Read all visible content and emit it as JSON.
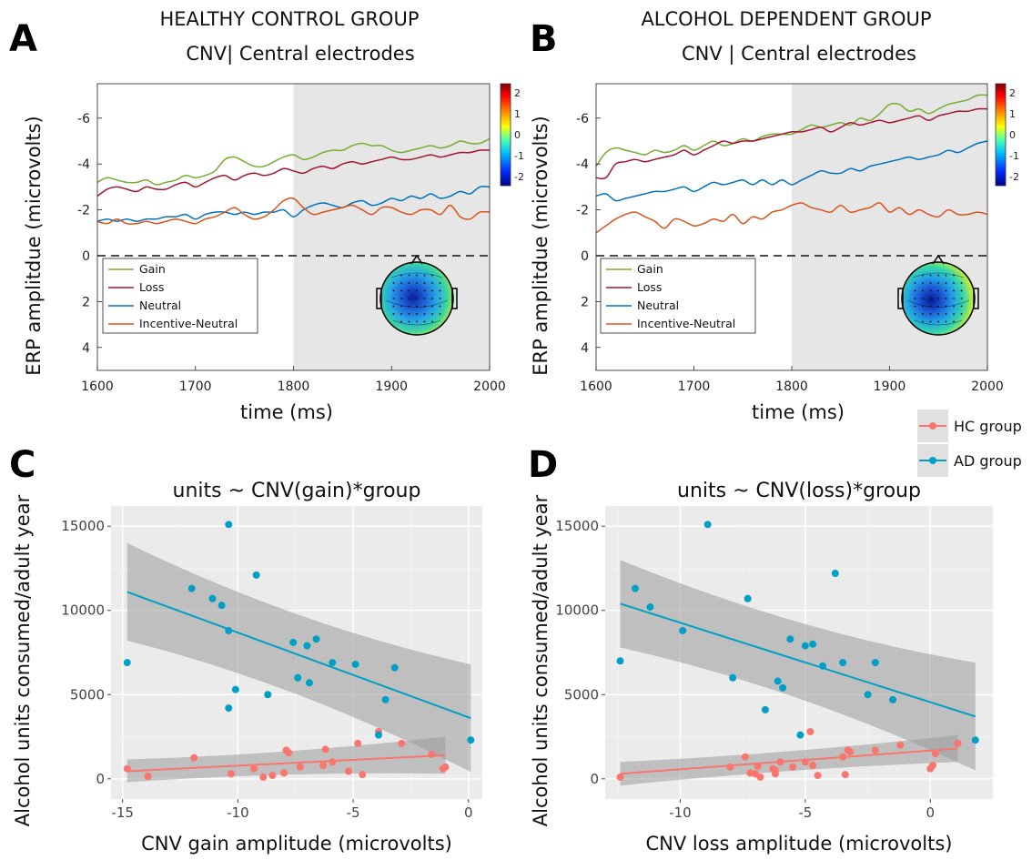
{
  "figure": {
    "panels": {
      "A": {
        "letter": "A",
        "title1": "HEALTHY CONTROL GROUP",
        "title2": "CNV| Central electrodes"
      },
      "B": {
        "letter": "B",
        "title1": "ALCOHOL DEPENDENT GROUP",
        "title2": "CNV | Central electrodes"
      },
      "C": {
        "letter": "C",
        "title": "units ~ CNV(gain)*group"
      },
      "D": {
        "letter": "D",
        "title": "units ~ CNV(loss)*group"
      }
    },
    "erp_xlabel": "time (ms)",
    "erp_ylabel": "ERP amplitdue (microvolts)",
    "scatter_ylabel": "Alcohol units consumed/adult year",
    "scatter_c_xlabel": "CNV gain amplitude (microvolts)",
    "scatter_d_xlabel": "CNV loss amplitude (microvolts)",
    "erp_legend": [
      "Gain",
      "Loss",
      "Neutral",
      "Incentive-Neutral"
    ],
    "group_legend": [
      "HC group",
      "AD group"
    ],
    "colorbar_ticks": [
      "2",
      "1",
      "0",
      "-1",
      "-2"
    ],
    "colors": {
      "gain": "#77ac30",
      "loss": "#a2142f",
      "neutral": "#0072bd",
      "incentive_neutral": "#d95319",
      "hc": "#f8766d",
      "ad": "#00a0c6",
      "panel_bg": "#ebebeb",
      "shade": "#e6e6e6"
    }
  },
  "chart_data": [
    {
      "id": "A",
      "type": "line",
      "title": "HEALTHY CONTROL GROUP CNV| Central electrodes",
      "xlabel": "time (ms)",
      "ylabel": "ERP amplitdue (microvolts)",
      "xlim": [
        1600,
        2000
      ],
      "ylim": [
        -7.5,
        5
      ],
      "y_reversed": true,
      "xticks": [
        1600,
        1700,
        1800,
        1900,
        2000
      ],
      "yticks": [
        -6,
        -4,
        -2,
        0,
        2,
        4
      ],
      "shaded_from": 1800,
      "zero_line": "dashed",
      "legend_position": "lower-left",
      "x": [
        1600,
        1610,
        1620,
        1630,
        1640,
        1650,
        1660,
        1670,
        1680,
        1690,
        1700,
        1710,
        1720,
        1730,
        1740,
        1750,
        1760,
        1770,
        1780,
        1790,
        1800,
        1810,
        1820,
        1830,
        1840,
        1850,
        1860,
        1870,
        1880,
        1890,
        1900,
        1910,
        1920,
        1930,
        1940,
        1950,
        1960,
        1970,
        1980,
        1990,
        2000
      ],
      "series": [
        {
          "name": "Gain",
          "values": [
            -3.2,
            -3.4,
            -3.3,
            -3.2,
            -3.2,
            -3.3,
            -3.1,
            -3.2,
            -3.3,
            -3.5,
            -3.4,
            -3.5,
            -3.7,
            -4.2,
            -4.3,
            -4.1,
            -3.9,
            -3.9,
            -4.1,
            -4.3,
            -4.4,
            -4.2,
            -4.3,
            -4.5,
            -4.6,
            -4.6,
            -4.8,
            -4.9,
            -4.8,
            -4.8,
            -4.6,
            -4.5,
            -4.6,
            -4.7,
            -4.8,
            -4.7,
            -4.8,
            -5.0,
            -4.9,
            -4.9,
            -5.1
          ]
        },
        {
          "name": "Loss",
          "values": [
            -2.6,
            -2.9,
            -3.0,
            -2.9,
            -2.8,
            -3.0,
            -2.9,
            -2.9,
            -3.1,
            -3.2,
            -3.0,
            -3.2,
            -3.4,
            -3.5,
            -3.3,
            -3.5,
            -3.6,
            -3.5,
            -3.6,
            -3.8,
            -3.7,
            -3.6,
            -3.8,
            -3.9,
            -3.8,
            -4.0,
            -4.1,
            -4.0,
            -4.1,
            -4.2,
            -4.3,
            -4.2,
            -4.2,
            -4.3,
            -4.4,
            -4.3,
            -4.4,
            -4.5,
            -4.5,
            -4.6,
            -4.6
          ]
        },
        {
          "name": "Neutral",
          "values": [
            -1.5,
            -1.6,
            -1.5,
            -1.6,
            -1.5,
            -1.6,
            -1.6,
            -1.7,
            -1.7,
            -1.8,
            -1.6,
            -1.8,
            -1.9,
            -1.9,
            -1.8,
            -1.9,
            -1.8,
            -1.9,
            -1.9,
            -2.0,
            -1.7,
            -2.0,
            -2.2,
            -2.3,
            -2.2,
            -2.1,
            -2.3,
            -2.4,
            -2.2,
            -2.3,
            -2.5,
            -2.4,
            -2.6,
            -2.5,
            -2.7,
            -2.5,
            -2.6,
            -2.8,
            -2.7,
            -3.0,
            -3.0
          ]
        },
        {
          "name": "Incentive-Neutral",
          "values": [
            -1.5,
            -1.4,
            -1.6,
            -1.4,
            -1.4,
            -1.5,
            -1.4,
            -1.5,
            -1.6,
            -1.5,
            -1.4,
            -1.6,
            -1.7,
            -1.9,
            -2.1,
            -1.8,
            -1.6,
            -1.7,
            -2.0,
            -2.4,
            -2.5,
            -2.1,
            -1.8,
            -1.9,
            -2.0,
            -2.1,
            -2.2,
            -2.0,
            -1.8,
            -2.1,
            -2.1,
            -1.9,
            -1.8,
            -2.0,
            -2.0,
            -1.8,
            -2.2,
            -1.7,
            -1.6,
            -1.9,
            -1.9
          ]
        }
      ]
    },
    {
      "id": "B",
      "type": "line",
      "title": "ALCOHOL DEPENDENT GROUP CNV | Central electrodes",
      "xlabel": "time (ms)",
      "ylabel": "ERP amplitdue (microvolts)",
      "xlim": [
        1600,
        2000
      ],
      "ylim": [
        -7.5,
        5
      ],
      "y_reversed": true,
      "xticks": [
        1600,
        1700,
        1800,
        1900,
        2000
      ],
      "yticks": [
        -6,
        -4,
        -2,
        0,
        2,
        4
      ],
      "shaded_from": 1800,
      "zero_line": "dashed",
      "legend_position": "lower-left",
      "x": [
        1600,
        1610,
        1620,
        1630,
        1640,
        1650,
        1660,
        1670,
        1680,
        1690,
        1700,
        1710,
        1720,
        1730,
        1740,
        1750,
        1760,
        1770,
        1780,
        1790,
        1800,
        1810,
        1820,
        1830,
        1840,
        1850,
        1860,
        1870,
        1880,
        1890,
        1900,
        1910,
        1920,
        1930,
        1940,
        1950,
        1960,
        1970,
        1980,
        1990,
        2000
      ],
      "series": [
        {
          "name": "Gain",
          "values": [
            -3.9,
            -4.5,
            -4.7,
            -4.6,
            -4.5,
            -4.4,
            -4.6,
            -4.5,
            -4.6,
            -4.8,
            -4.6,
            -4.8,
            -5.0,
            -4.8,
            -4.9,
            -5.1,
            -5.0,
            -5.2,
            -5.3,
            -5.3,
            -5.3,
            -5.5,
            -5.7,
            -5.6,
            -5.7,
            -5.8,
            -5.7,
            -6.0,
            -5.9,
            -6.2,
            -6.6,
            -6.6,
            -6.3,
            -6.4,
            -6.2,
            -6.4,
            -6.6,
            -6.7,
            -6.8,
            -7.0,
            -7.0
          ]
        },
        {
          "name": "Loss",
          "values": [
            -3.4,
            -3.4,
            -4.0,
            -4.1,
            -4.2,
            -4.1,
            -4.2,
            -4.3,
            -4.4,
            -4.6,
            -4.4,
            -4.6,
            -4.8,
            -5.0,
            -4.9,
            -5.0,
            -5.0,
            -5.1,
            -5.2,
            -5.3,
            -5.4,
            -5.4,
            -5.5,
            -5.6,
            -5.4,
            -5.6,
            -5.8,
            -5.7,
            -5.8,
            -5.9,
            -5.8,
            -5.9,
            -6.0,
            -6.1,
            -5.9,
            -6.1,
            -6.2,
            -6.3,
            -6.3,
            -6.4,
            -6.4
          ]
        },
        {
          "name": "Neutral",
          "values": [
            -2.6,
            -2.7,
            -2.4,
            -2.5,
            -2.6,
            -2.7,
            -2.8,
            -2.8,
            -2.9,
            -3.0,
            -2.8,
            -3.0,
            -3.2,
            -3.1,
            -3.2,
            -3.3,
            -3.1,
            -3.3,
            -3.1,
            -3.3,
            -3.1,
            -3.3,
            -3.5,
            -3.7,
            -3.6,
            -3.6,
            -3.8,
            -3.7,
            -3.9,
            -4.0,
            -4.1,
            -4.2,
            -4.3,
            -4.2,
            -4.3,
            -4.4,
            -4.6,
            -4.5,
            -4.7,
            -4.9,
            -5.0
          ]
        },
        {
          "name": "Incentive-Neutral",
          "values": [
            -1.0,
            -1.3,
            -1.6,
            -1.8,
            -1.9,
            -1.7,
            -1.5,
            -1.2,
            -1.6,
            -1.5,
            -1.3,
            -1.4,
            -1.6,
            -1.5,
            -1.8,
            -1.4,
            -1.7,
            -1.6,
            -1.9,
            -2.0,
            -2.2,
            -2.3,
            -2.1,
            -2.0,
            -1.9,
            -2.2,
            -1.9,
            -2.0,
            -2.1,
            -2.3,
            -1.9,
            -2.1,
            -1.8,
            -2.0,
            -1.8,
            -1.7,
            -2.0,
            -1.8,
            -1.8,
            -1.9,
            -1.8
          ]
        }
      ]
    },
    {
      "id": "C",
      "type": "scatter",
      "title": "units ~ CNV(gain)*group",
      "xlabel": "CNV gain amplitude (microvolts)",
      "ylabel": "Alcohol units consumed/adult year",
      "xlim": [
        -15.5,
        0.6
      ],
      "ylim": [
        -1200,
        16200
      ],
      "xticks": [
        -15,
        -10,
        -5,
        0
      ],
      "yticks": [
        0,
        5000,
        10000,
        15000
      ],
      "grid": true,
      "legend_position": "top-right",
      "series": [
        {
          "name": "HC group",
          "points": [
            [
              -14.8,
              600
            ],
            [
              -13.9,
              150
            ],
            [
              -11.9,
              1250
            ],
            [
              -10.3,
              300
            ],
            [
              -9.3,
              600
            ],
            [
              -8.9,
              100
            ],
            [
              -8.5,
              200
            ],
            [
              -8.0,
              350
            ],
            [
              -7.9,
              1700
            ],
            [
              -7.8,
              1550
            ],
            [
              -7.3,
              700
            ],
            [
              -6.3,
              800
            ],
            [
              -6.2,
              1750
            ],
            [
              -5.9,
              1000
            ],
            [
              -5.2,
              450
            ],
            [
              -4.8,
              2100
            ],
            [
              -4.6,
              250
            ],
            [
              -3.9,
              2800
            ],
            [
              -2.9,
              2100
            ],
            [
              -1.6,
              1450
            ],
            [
              -1.1,
              600
            ],
            [
              -1.0,
              700
            ]
          ],
          "fit": {
            "x": [
              -14.8,
              -1.0
            ],
            "y": [
              450,
              1400
            ],
            "band_lower": [
              -200,
              300
            ],
            "band_upper": [
              1150,
              2500
            ]
          }
        },
        {
          "name": "AD group",
          "points": [
            [
              -14.8,
              6900
            ],
            [
              -12.0,
              11300
            ],
            [
              -11.1,
              10700
            ],
            [
              -10.7,
              10300
            ],
            [
              -10.4,
              15100
            ],
            [
              -10.4,
              8800
            ],
            [
              -10.4,
              4200
            ],
            [
              -10.1,
              5300
            ],
            [
              -9.2,
              12100
            ],
            [
              -8.7,
              5000
            ],
            [
              -7.6,
              8100
            ],
            [
              -7.4,
              6000
            ],
            [
              -7.0,
              7900
            ],
            [
              -6.9,
              5700
            ],
            [
              -6.6,
              8300
            ],
            [
              -5.9,
              6900
            ],
            [
              -4.9,
              6800
            ],
            [
              -3.6,
              4700
            ],
            [
              -3.2,
              6600
            ],
            [
              -3.9,
              2600
            ],
            [
              0.1,
              2300
            ]
          ],
          "fit": {
            "x": [
              -14.8,
              0.1
            ],
            "y": [
              11100,
              3600
            ],
            "band_lower": [
              8200,
              400
            ],
            "band_upper": [
              14000,
              6800
            ]
          }
        }
      ]
    },
    {
      "id": "D",
      "type": "scatter",
      "title": "units ~ CNV(loss)*group",
      "xlabel": "CNV loss amplitude (microvolts)",
      "ylabel": "Alcohol units consumed/adult year",
      "xlim": [
        -13.0,
        2.5
      ],
      "ylim": [
        -1200,
        16200
      ],
      "xticks": [
        -10,
        -5,
        0
      ],
      "yticks": [
        0,
        5000,
        10000,
        15000
      ],
      "grid": true,
      "series": [
        {
          "name": "HC group",
          "points": [
            [
              -12.4,
              100
            ],
            [
              -8.0,
              700
            ],
            [
              -7.4,
              1300
            ],
            [
              -7.2,
              350
            ],
            [
              -7.0,
              300
            ],
            [
              -6.9,
              750
            ],
            [
              -6.8,
              100
            ],
            [
              -6.3,
              600
            ],
            [
              -6.2,
              300
            ],
            [
              -6.2,
              500
            ],
            [
              -6.0,
              1000
            ],
            [
              -5.5,
              700
            ],
            [
              -5.0,
              1000
            ],
            [
              -4.8,
              2800
            ],
            [
              -4.7,
              800
            ],
            [
              -4.5,
              200
            ],
            [
              -3.5,
              1300
            ],
            [
              -3.3,
              1700
            ],
            [
              -3.2,
              1600
            ],
            [
              -3.4,
              250
            ],
            [
              -2.2,
              1700
            ],
            [
              -1.2,
              2000
            ],
            [
              0.0,
              600
            ],
            [
              0.2,
              1500
            ],
            [
              0.1,
              800
            ],
            [
              1.1,
              2100
            ]
          ],
          "fit": {
            "x": [
              -12.4,
              1.1
            ],
            "y": [
              300,
              1800
            ],
            "band_lower": [
              -400,
              1000
            ],
            "band_upper": [
              1000,
              2600
            ]
          }
        },
        {
          "name": "AD group",
          "points": [
            [
              -12.4,
              7000
            ],
            [
              -11.8,
              11300
            ],
            [
              -11.2,
              10200
            ],
            [
              -9.9,
              8800
            ],
            [
              -8.9,
              15100
            ],
            [
              -7.9,
              6000
            ],
            [
              -7.3,
              10700
            ],
            [
              -6.6,
              4100
            ],
            [
              -6.1,
              5800
            ],
            [
              -5.9,
              5400
            ],
            [
              -5.6,
              8300
            ],
            [
              -5.2,
              2600
            ],
            [
              -5.0,
              7900
            ],
            [
              -4.7,
              8000
            ],
            [
              -4.3,
              6700
            ],
            [
              -3.8,
              12200
            ],
            [
              -3.5,
              6900
            ],
            [
              -2.5,
              5000
            ],
            [
              -2.2,
              6900
            ],
            [
              -1.5,
              4700
            ],
            [
              1.8,
              2300
            ]
          ],
          "fit": {
            "x": [
              -12.4,
              1.8
            ],
            "y": [
              10400,
              3700
            ],
            "band_lower": [
              7800,
              500
            ],
            "band_upper": [
              13000,
              6900
            ]
          }
        }
      ]
    }
  ]
}
